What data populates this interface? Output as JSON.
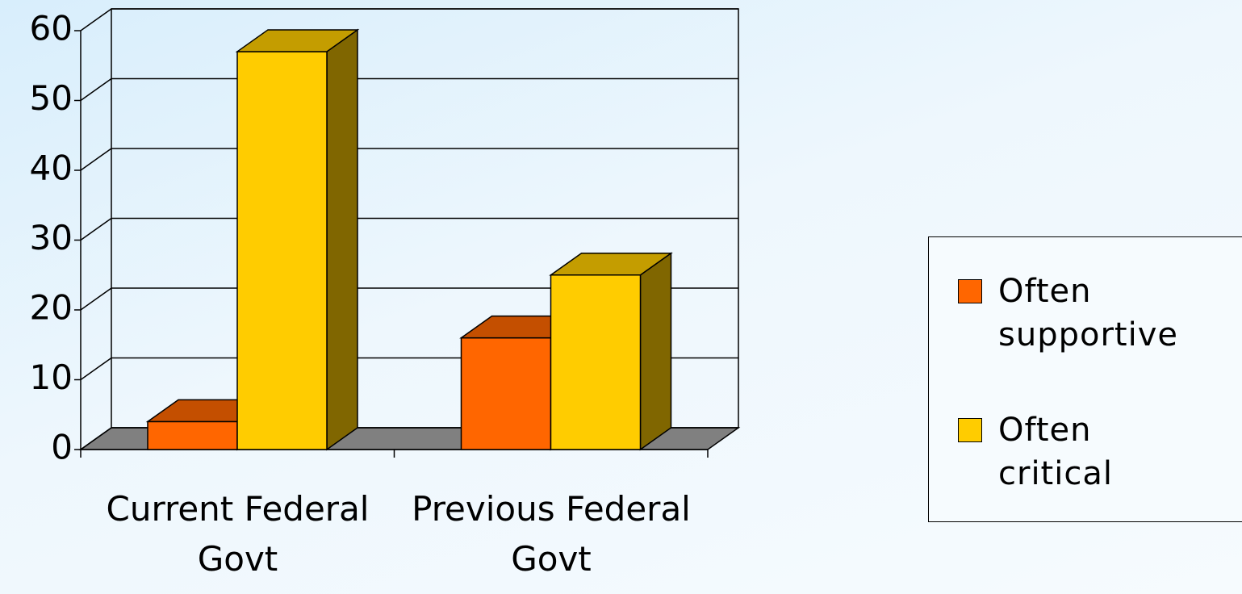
{
  "chart_data": {
    "type": "bar3d",
    "categories": [
      "Current Federal Govt",
      "Previous Federal Govt"
    ],
    "series": [
      {
        "name": "Often supportive",
        "color": "#ff6600",
        "values": [
          4,
          16
        ]
      },
      {
        "name": "Often critical",
        "color": "#ffcc00",
        "values": [
          57,
          25
        ]
      }
    ],
    "ylim": [
      0,
      60
    ],
    "yticks": [
      0,
      10,
      20,
      30,
      40,
      50,
      60
    ],
    "grid": true,
    "legend": "right"
  }
}
